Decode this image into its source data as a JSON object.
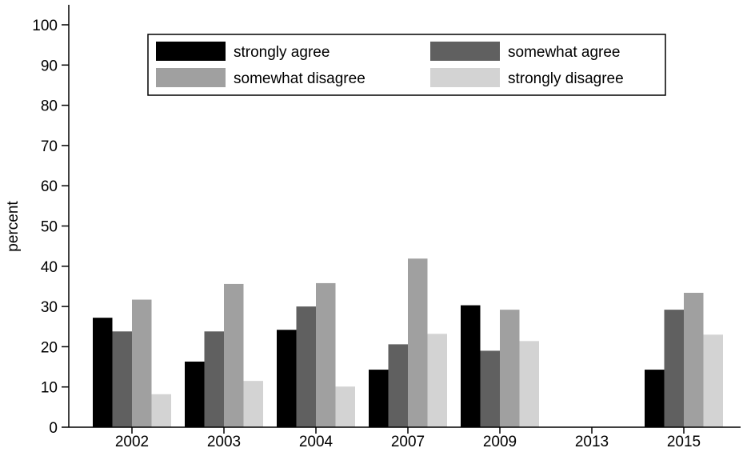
{
  "chart_data": {
    "type": "bar",
    "title": "",
    "xlabel": "",
    "ylabel": "percent",
    "ylim": [
      0,
      105
    ],
    "yticks": [
      0,
      10,
      20,
      30,
      40,
      50,
      60,
      70,
      80,
      90,
      100
    ],
    "categories": [
      "2002",
      "2003",
      "2004",
      "2007",
      "2009",
      "2013",
      "2015"
    ],
    "legend_position": "top",
    "grid": false,
    "series": [
      {
        "name": "strongly agree",
        "color": "#000000",
        "values": [
          27.2,
          16.3,
          24.2,
          14.3,
          30.3,
          null,
          14.3
        ]
      },
      {
        "name": "somewhat agree",
        "color": "#606060",
        "values": [
          23.8,
          23.8,
          30.0,
          20.6,
          19.0,
          null,
          29.2
        ]
      },
      {
        "name": "somewhat disagree",
        "color": "#a0a0a0",
        "values": [
          31.7,
          35.6,
          35.8,
          41.9,
          29.2,
          null,
          33.4
        ]
      },
      {
        "name": "strongly disagree",
        "color": "#d3d3d3",
        "values": [
          8.2,
          11.5,
          10.1,
          23.2,
          21.4,
          null,
          23.0
        ]
      }
    ]
  }
}
